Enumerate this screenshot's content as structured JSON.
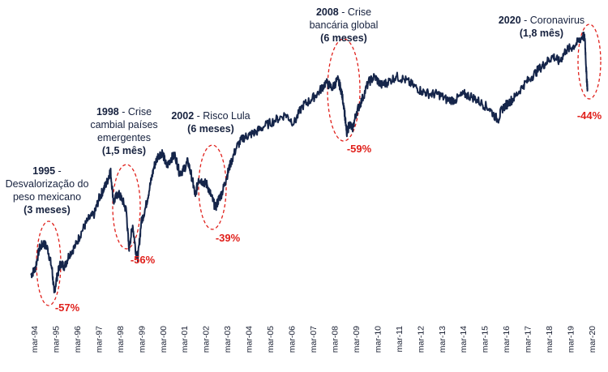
{
  "chart_data": {
    "type": "line",
    "title": "",
    "xlabel": "",
    "ylabel": "",
    "colors": {
      "line": "#15254a",
      "drawdown": "#e0201b",
      "text": "#16213e",
      "axis": "#1a2033"
    },
    "x_ticks": [
      "mar-94",
      "mar-95",
      "mar-96",
      "mar-97",
      "mar-98",
      "mar-99",
      "mar-00",
      "mar-01",
      "mar-02",
      "mar-03",
      "mar-04",
      "mar-05",
      "mar-06",
      "mar-07",
      "mar-08",
      "mar-09",
      "mar-10",
      "mar-11",
      "mar-12",
      "mar-13",
      "mar-14",
      "mar-15",
      "mar-16",
      "mar-17",
      "mar-18",
      "mar-19",
      "mar-20"
    ],
    "x_range": [
      1994.0,
      2020.5
    ],
    "y_range": [
      0,
      100
    ],
    "series": [
      {
        "values": [
          {
            "x": 1994.0,
            "y": 22
          },
          {
            "x": 1994.2,
            "y": 24
          },
          {
            "x": 1994.4,
            "y": 31
          },
          {
            "x": 1994.6,
            "y": 33
          },
          {
            "x": 1994.8,
            "y": 31
          },
          {
            "x": 1995.0,
            "y": 24
          },
          {
            "x": 1995.1,
            "y": 16
          },
          {
            "x": 1995.25,
            "y": 22
          },
          {
            "x": 1995.4,
            "y": 26
          },
          {
            "x": 1995.6,
            "y": 25
          },
          {
            "x": 1995.8,
            "y": 29
          },
          {
            "x": 1996.1,
            "y": 32
          },
          {
            "x": 1996.4,
            "y": 37
          },
          {
            "x": 1996.7,
            "y": 41
          },
          {
            "x": 1997.0,
            "y": 43
          },
          {
            "x": 1997.2,
            "y": 48
          },
          {
            "x": 1997.4,
            "y": 51
          },
          {
            "x": 1997.6,
            "y": 54
          },
          {
            "x": 1997.75,
            "y": 58
          },
          {
            "x": 1997.9,
            "y": 47
          },
          {
            "x": 1998.1,
            "y": 50
          },
          {
            "x": 1998.3,
            "y": 48
          },
          {
            "x": 1998.5,
            "y": 44
          },
          {
            "x": 1998.62,
            "y": 31
          },
          {
            "x": 1998.8,
            "y": 39
          },
          {
            "x": 1998.95,
            "y": 30
          },
          {
            "x": 1999.05,
            "y": 28
          },
          {
            "x": 1999.2,
            "y": 40
          },
          {
            "x": 1999.4,
            "y": 45
          },
          {
            "x": 1999.6,
            "y": 52
          },
          {
            "x": 1999.8,
            "y": 59
          },
          {
            "x": 2000.0,
            "y": 63
          },
          {
            "x": 2000.2,
            "y": 64
          },
          {
            "x": 2000.4,
            "y": 59
          },
          {
            "x": 2000.6,
            "y": 62
          },
          {
            "x": 2000.8,
            "y": 63
          },
          {
            "x": 2001.0,
            "y": 57
          },
          {
            "x": 2001.2,
            "y": 58
          },
          {
            "x": 2001.4,
            "y": 61
          },
          {
            "x": 2001.6,
            "y": 55
          },
          {
            "x": 2001.75,
            "y": 49
          },
          {
            "x": 2001.9,
            "y": 55
          },
          {
            "x": 2002.1,
            "y": 54
          },
          {
            "x": 2002.3,
            "y": 53
          },
          {
            "x": 2002.5,
            "y": 49
          },
          {
            "x": 2002.7,
            "y": 45
          },
          {
            "x": 2002.85,
            "y": 48
          },
          {
            "x": 2003.0,
            "y": 50
          },
          {
            "x": 2003.2,
            "y": 55
          },
          {
            "x": 2003.4,
            "y": 60
          },
          {
            "x": 2003.7,
            "y": 66
          },
          {
            "x": 2004.0,
            "y": 69
          },
          {
            "x": 2004.3,
            "y": 70
          },
          {
            "x": 2004.6,
            "y": 71
          },
          {
            "x": 2005.0,
            "y": 73
          },
          {
            "x": 2005.5,
            "y": 75
          },
          {
            "x": 2006.0,
            "y": 77
          },
          {
            "x": 2006.4,
            "y": 74
          },
          {
            "x": 2006.8,
            "y": 80
          },
          {
            "x": 2007.2,
            "y": 82
          },
          {
            "x": 2007.6,
            "y": 85
          },
          {
            "x": 2007.9,
            "y": 88
          },
          {
            "x": 2008.2,
            "y": 86
          },
          {
            "x": 2008.45,
            "y": 89
          },
          {
            "x": 2008.6,
            "y": 86
          },
          {
            "x": 2008.75,
            "y": 80
          },
          {
            "x": 2008.88,
            "y": 70
          },
          {
            "x": 2009.0,
            "y": 74
          },
          {
            "x": 2009.15,
            "y": 72
          },
          {
            "x": 2009.35,
            "y": 78
          },
          {
            "x": 2009.6,
            "y": 82
          },
          {
            "x": 2009.9,
            "y": 88
          },
          {
            "x": 2010.2,
            "y": 90
          },
          {
            "x": 2010.5,
            "y": 87
          },
          {
            "x": 2010.8,
            "y": 88
          },
          {
            "x": 2011.2,
            "y": 90
          },
          {
            "x": 2011.6,
            "y": 89
          },
          {
            "x": 2012.0,
            "y": 87
          },
          {
            "x": 2012.4,
            "y": 85
          },
          {
            "x": 2012.8,
            "y": 84
          },
          {
            "x": 2013.2,
            "y": 84
          },
          {
            "x": 2013.6,
            "y": 82
          },
          {
            "x": 2014.0,
            "y": 82
          },
          {
            "x": 2014.4,
            "y": 84
          },
          {
            "x": 2014.8,
            "y": 83
          },
          {
            "x": 2015.2,
            "y": 81
          },
          {
            "x": 2015.6,
            "y": 79
          },
          {
            "x": 2016.0,
            "y": 75
          },
          {
            "x": 2016.2,
            "y": 79
          },
          {
            "x": 2016.5,
            "y": 81
          },
          {
            "x": 2016.8,
            "y": 83
          },
          {
            "x": 2017.2,
            "y": 87
          },
          {
            "x": 2017.6,
            "y": 90
          },
          {
            "x": 2018.0,
            "y": 93
          },
          {
            "x": 2018.3,
            "y": 95
          },
          {
            "x": 2018.6,
            "y": 97
          },
          {
            "x": 2018.9,
            "y": 95
          },
          {
            "x": 2019.2,
            "y": 99
          },
          {
            "x": 2019.5,
            "y": 100
          },
          {
            "x": 2019.8,
            "y": 102
          },
          {
            "x": 2020.0,
            "y": 104
          },
          {
            "x": 2020.1,
            "y": 103
          },
          {
            "x": 2020.17,
            "y": 91
          },
          {
            "x": 2020.22,
            "y": 86
          }
        ]
      }
    ],
    "annotations": [
      {
        "year": "1995",
        "text": "Desvalorização do",
        "text2": "peso mexicano",
        "duration": "(3 meses)",
        "drawdown": "-57%"
      },
      {
        "year": "1998",
        "text": "Crise",
        "text2": "cambial países",
        "text3": "emergentes",
        "duration": "(1,5 mês)",
        "drawdown": "-56%"
      },
      {
        "year": "2002",
        "text": "Risco Lula",
        "duration": "(6 meses)",
        "drawdown": "-39%"
      },
      {
        "year": "2008",
        "text": "Crise",
        "text2": "bancária global",
        "duration": "(6 meses)",
        "drawdown": "-59%"
      },
      {
        "year": "2020",
        "text": "Coronavirus",
        "duration": "(1,8 mês)",
        "drawdown": "-44%"
      }
    ]
  }
}
